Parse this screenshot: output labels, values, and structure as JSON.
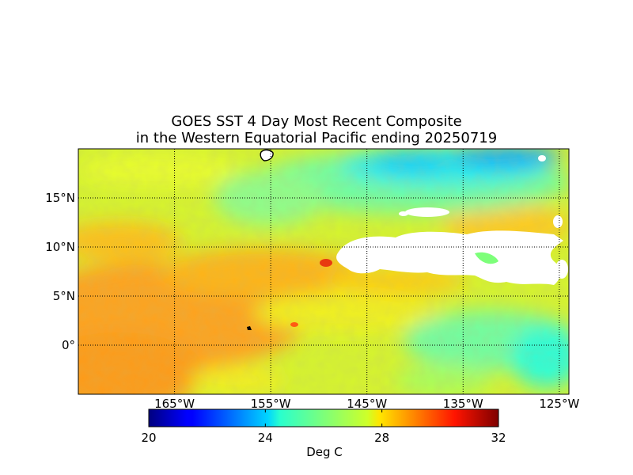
{
  "title": {
    "line1": "GOES SST 4 Day Most Recent Composite",
    "line2": "in the Western Equatorial Pacific ending 20250719"
  },
  "map": {
    "lon_range": [
      -175,
      -124
    ],
    "lat_range": [
      -5,
      20
    ],
    "lon_ticks": [
      {
        "value": -165,
        "label": "165°W"
      },
      {
        "value": -155,
        "label": "155°W"
      },
      {
        "value": -145,
        "label": "145°W"
      },
      {
        "value": -135,
        "label": "135°W"
      },
      {
        "value": -125,
        "label": "125°W"
      }
    ],
    "lat_ticks": [
      {
        "value": 15,
        "label": "15°N"
      },
      {
        "value": 10,
        "label": "10°N"
      },
      {
        "value": 5,
        "label": "5°N"
      },
      {
        "value": 0,
        "label": "0°"
      }
    ],
    "grid": "dotted",
    "land_color": "#ffffff",
    "no_data_color": "#ffffff"
  },
  "colorbar": {
    "min": 20,
    "max": 32,
    "ticks": [
      {
        "value": 20,
        "label": "20"
      },
      {
        "value": 24,
        "label": "24"
      },
      {
        "value": 28,
        "label": "28"
      },
      {
        "value": 32,
        "label": "32"
      }
    ],
    "label": "Deg C",
    "colormap": "jet",
    "orientation": "horizontal"
  }
}
